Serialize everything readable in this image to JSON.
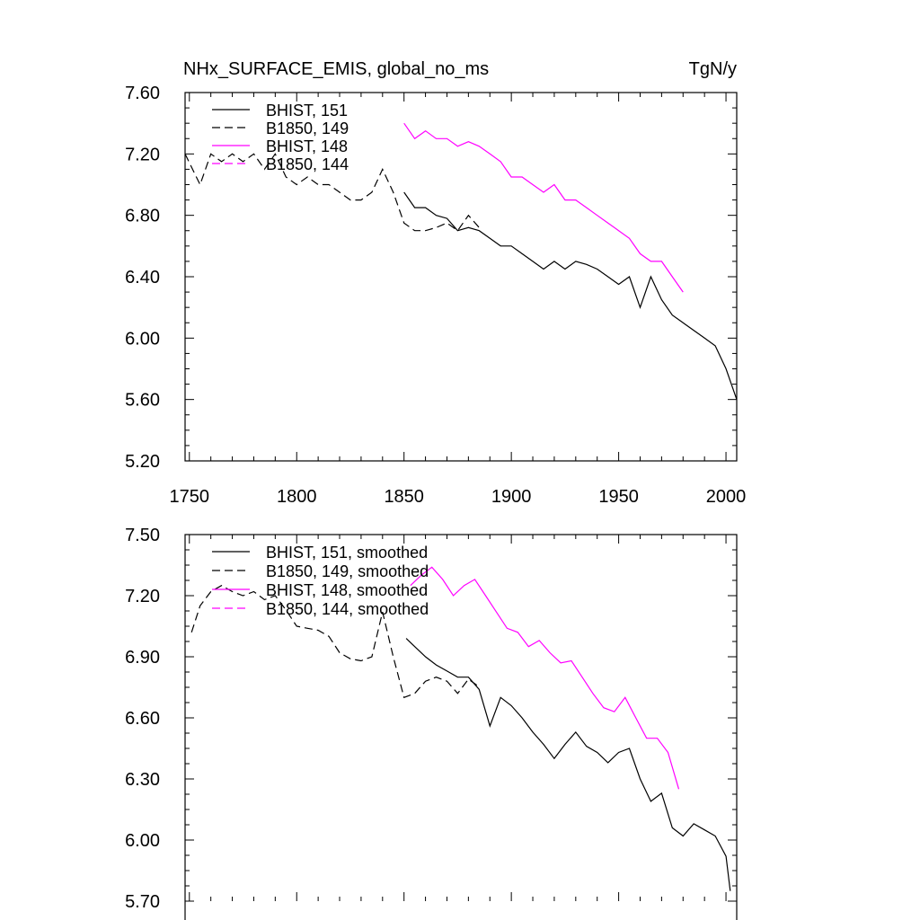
{
  "chart_data": [
    {
      "type": "line",
      "title_left": "NHx_SURFACE_EMIS, global_no_ms",
      "title_right": "TgN/y",
      "xlim": [
        1748,
        2005
      ],
      "ylim": [
        5.2,
        7.6
      ],
      "x_ticks": [
        "1750",
        "1800",
        "1850",
        "1900",
        "1950",
        "2000"
      ],
      "y_ticks": [
        "5.20",
        "5.60",
        "6.00",
        "6.40",
        "6.80",
        "7.20",
        "7.60"
      ],
      "series": [
        {
          "name": "BHIST, 151",
          "color": "#000000",
          "dash": "solid",
          "x": [
            1850,
            1855,
            1860,
            1865,
            1870,
            1875,
            1880,
            1885,
            1890,
            1895,
            1900,
            1905,
            1910,
            1915,
            1920,
            1925,
            1930,
            1935,
            1940,
            1945,
            1950,
            1955,
            1960,
            1965,
            1970,
            1975,
            1980,
            1985,
            1990,
            1995,
            2000,
            2005
          ],
          "y": [
            6.95,
            6.85,
            6.85,
            6.8,
            6.78,
            6.7,
            6.72,
            6.7,
            6.65,
            6.6,
            6.6,
            6.55,
            6.5,
            6.45,
            6.5,
            6.45,
            6.5,
            6.48,
            6.45,
            6.4,
            6.35,
            6.4,
            6.2,
            6.4,
            6.25,
            6.15,
            6.1,
            6.05,
            6.0,
            5.95,
            5.8,
            5.6
          ]
        },
        {
          "name": "B1850, 149",
          "color": "#000000",
          "dash": "dashed",
          "x": [
            1748,
            1755,
            1760,
            1765,
            1770,
            1775,
            1780,
            1785,
            1790,
            1795,
            1800,
            1805,
            1810,
            1815,
            1820,
            1825,
            1830,
            1835,
            1840,
            1845,
            1850,
            1855,
            1860,
            1865,
            1870,
            1875,
            1880,
            1885
          ],
          "y": [
            7.2,
            7.0,
            7.2,
            7.15,
            7.2,
            7.15,
            7.2,
            7.1,
            7.2,
            7.05,
            7.0,
            7.05,
            7.0,
            7.0,
            6.95,
            6.9,
            6.9,
            6.95,
            7.1,
            6.95,
            6.75,
            6.7,
            6.7,
            6.72,
            6.75,
            6.7,
            6.8,
            6.72
          ]
        },
        {
          "name": "BHIST, 148",
          "color": "#ff00ff",
          "dash": "solid",
          "x": [
            1850,
            1855,
            1860,
            1865,
            1870,
            1875,
            1880,
            1885,
            1890,
            1895,
            1900,
            1905,
            1910,
            1915,
            1920,
            1925,
            1930,
            1935,
            1940,
            1945,
            1950,
            1955,
            1960,
            1965,
            1970,
            1975,
            1980
          ],
          "y": [
            7.4,
            7.3,
            7.35,
            7.3,
            7.3,
            7.25,
            7.28,
            7.25,
            7.2,
            7.15,
            7.05,
            7.05,
            7.0,
            6.95,
            7.0,
            6.9,
            6.9,
            6.85,
            6.8,
            6.75,
            6.7,
            6.65,
            6.55,
            6.5,
            6.5,
            6.4,
            6.3
          ]
        },
        {
          "name": "B1850, 144",
          "color": "#ff00ff",
          "dash": "dashed",
          "x": [],
          "y": []
        }
      ],
      "legend_position": "top-left"
    },
    {
      "type": "line",
      "title_left": "",
      "title_right": "",
      "xlim": [
        1748,
        2005
      ],
      "ylim": [
        5.7,
        7.5
      ],
      "x_ticks": [],
      "y_ticks": [
        "5.70",
        "6.00",
        "6.30",
        "6.60",
        "6.90",
        "7.20",
        "7.50"
      ],
      "series": [
        {
          "name": "BHIST, 151, smoothed",
          "color": "#000000",
          "dash": "solid",
          "x": [
            1851,
            1855,
            1860,
            1865,
            1870,
            1875,
            1880,
            1885,
            1890,
            1895,
            1900,
            1905,
            1910,
            1915,
            1920,
            1925,
            1930,
            1935,
            1940,
            1945,
            1950,
            1955,
            1960,
            1965,
            1970,
            1975,
            1980,
            1985,
            1990,
            1995,
            2000,
            2002
          ],
          "y": [
            6.99,
            6.95,
            6.9,
            6.86,
            6.83,
            6.8,
            6.8,
            6.74,
            6.56,
            6.7,
            6.66,
            6.6,
            6.53,
            6.47,
            6.4,
            6.47,
            6.53,
            6.46,
            6.43,
            6.38,
            6.43,
            6.45,
            6.3,
            6.19,
            6.23,
            6.06,
            6.02,
            6.08,
            6.05,
            6.02,
            5.92,
            5.75
          ]
        },
        {
          "name": "B1850, 149, smoothed",
          "color": "#000000",
          "dash": "dashed",
          "x": [
            1751,
            1755,
            1760,
            1765,
            1770,
            1775,
            1780,
            1785,
            1790,
            1795,
            1800,
            1805,
            1810,
            1815,
            1820,
            1825,
            1830,
            1835,
            1840,
            1845,
            1850,
            1855,
            1860,
            1865,
            1870,
            1875,
            1880,
            1884
          ],
          "y": [
            7.02,
            7.15,
            7.22,
            7.25,
            7.22,
            7.2,
            7.22,
            7.18,
            7.2,
            7.13,
            7.05,
            7.04,
            7.03,
            7.0,
            6.92,
            6.89,
            6.88,
            6.9,
            7.12,
            6.9,
            6.7,
            6.72,
            6.78,
            6.8,
            6.78,
            6.72,
            6.79,
            6.76
          ]
        },
        {
          "name": "BHIST, 148, smoothed",
          "color": "#ff00ff",
          "dash": "solid",
          "x": [
            1853,
            1858,
            1863,
            1868,
            1873,
            1878,
            1883,
            1888,
            1893,
            1898,
            1903,
            1908,
            1913,
            1918,
            1923,
            1928,
            1933,
            1938,
            1943,
            1948,
            1953,
            1958,
            1963,
            1968,
            1973,
            1978
          ],
          "y": [
            7.25,
            7.3,
            7.34,
            7.28,
            7.2,
            7.25,
            7.28,
            7.2,
            7.12,
            7.04,
            7.02,
            6.95,
            6.98,
            6.92,
            6.87,
            6.88,
            6.8,
            6.72,
            6.65,
            6.63,
            6.7,
            6.6,
            6.5,
            6.5,
            6.43,
            6.25
          ]
        },
        {
          "name": "B1850, 144, smoothed",
          "color": "#ff00ff",
          "dash": "dashed",
          "x": [],
          "y": []
        }
      ],
      "legend_position": "top-left"
    }
  ]
}
